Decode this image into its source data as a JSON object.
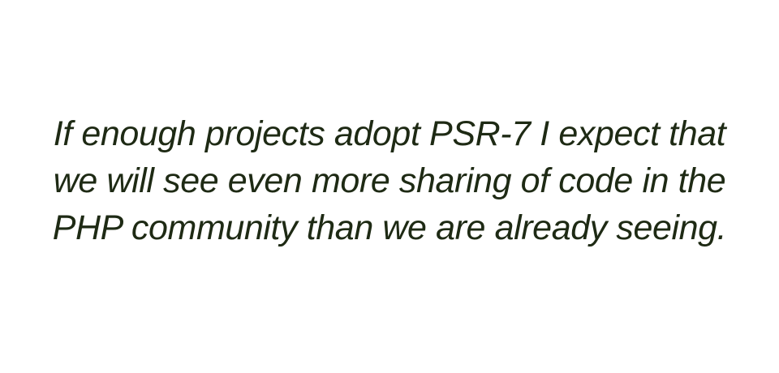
{
  "quote": {
    "lines": [
      "If enough projects adopt PSR-7 I expect that",
      "we will see even more sharing of code in the",
      "PHP community than we are already seeing."
    ]
  },
  "colors": {
    "background": "#ffffff",
    "text": "#1e2a14"
  }
}
